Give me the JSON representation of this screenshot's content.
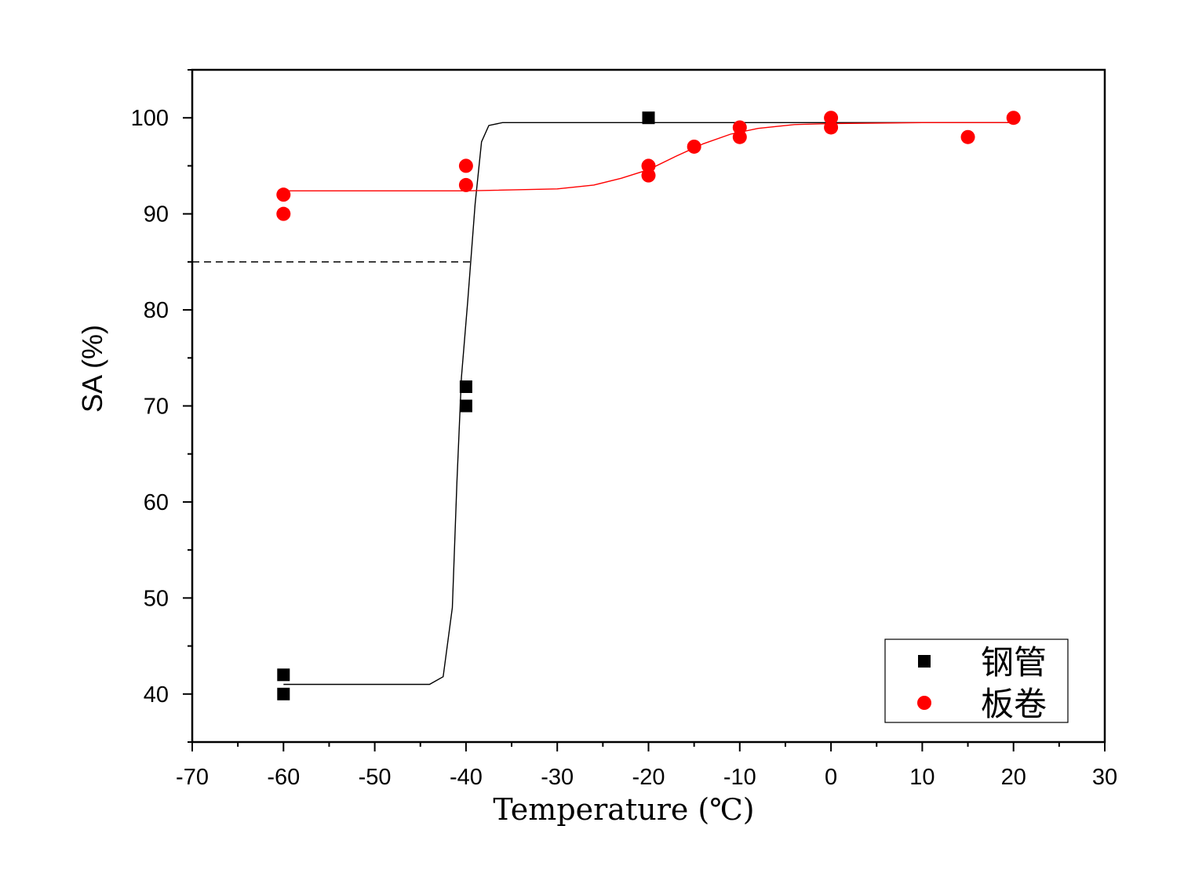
{
  "chart_data": {
    "type": "scatter",
    "xlabel": "Temperature (℃)",
    "ylabel": "SA (%)",
    "xlim": [
      -70,
      30
    ],
    "ylim": [
      35,
      105
    ],
    "xticks": [
      -70,
      -60,
      -50,
      -40,
      -30,
      -20,
      -10,
      0,
      10,
      20,
      30
    ],
    "yticks": [
      40,
      50,
      60,
      70,
      80,
      90,
      100
    ],
    "grid": false,
    "legend_position": "bottom-right",
    "reference_line": {
      "y": 85,
      "x_from": -70,
      "x_to": -39.5,
      "style": "dashed",
      "color": "#000000"
    },
    "series": [
      {
        "name": "钢管",
        "marker": "square",
        "color": "#000000",
        "points": [
          {
            "x": -60,
            "y": 42
          },
          {
            "x": -60,
            "y": 40
          },
          {
            "x": -40,
            "y": 72
          },
          {
            "x": -40,
            "y": 70
          },
          {
            "x": -20,
            "y": 100
          }
        ],
        "fit_curve": [
          {
            "x": -60,
            "y": 41
          },
          {
            "x": -44,
            "y": 41
          },
          {
            "x": -42.5,
            "y": 41.8
          },
          {
            "x": -41.5,
            "y": 49
          },
          {
            "x": -41,
            "y": 62
          },
          {
            "x": -40.5,
            "y": 73
          },
          {
            "x": -39.8,
            "y": 81
          },
          {
            "x": -39,
            "y": 91
          },
          {
            "x": -38.3,
            "y": 97.5
          },
          {
            "x": -37.5,
            "y": 99.2
          },
          {
            "x": -36,
            "y": 99.5
          },
          {
            "x": 20,
            "y": 99.5
          }
        ]
      },
      {
        "name": "板卷",
        "marker": "circle",
        "color": "#ff0000",
        "points": [
          {
            "x": -60,
            "y": 92
          },
          {
            "x": -60,
            "y": 90
          },
          {
            "x": -40,
            "y": 95
          },
          {
            "x": -40,
            "y": 93
          },
          {
            "x": -20,
            "y": 95
          },
          {
            "x": -20,
            "y": 94
          },
          {
            "x": -15,
            "y": 97
          },
          {
            "x": -10,
            "y": 99
          },
          {
            "x": -10,
            "y": 98
          },
          {
            "x": 0,
            "y": 100
          },
          {
            "x": 0,
            "y": 99
          },
          {
            "x": 15,
            "y": 98
          },
          {
            "x": 20,
            "y": 100
          }
        ],
        "fit_curve": [
          {
            "x": -60,
            "y": 92.4
          },
          {
            "x": -40,
            "y": 92.4
          },
          {
            "x": -30,
            "y": 92.6
          },
          {
            "x": -26,
            "y": 93
          },
          {
            "x": -23,
            "y": 93.7
          },
          {
            "x": -20,
            "y": 94.6
          },
          {
            "x": -17,
            "y": 96
          },
          {
            "x": -14,
            "y": 97.3
          },
          {
            "x": -11,
            "y": 98.3
          },
          {
            "x": -8,
            "y": 98.9
          },
          {
            "x": -4,
            "y": 99.3
          },
          {
            "x": 0,
            "y": 99.4
          },
          {
            "x": 10,
            "y": 99.5
          },
          {
            "x": 20,
            "y": 99.5
          }
        ]
      }
    ]
  }
}
